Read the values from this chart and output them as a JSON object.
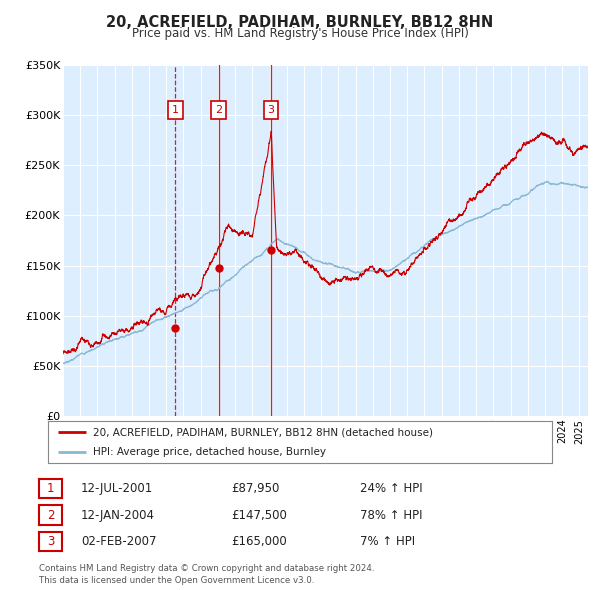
{
  "title": "20, ACREFIELD, PADIHAM, BURNLEY, BB12 8HN",
  "subtitle": "Price paid vs. HM Land Registry's House Price Index (HPI)",
  "legend_property": "20, ACREFIELD, PADIHAM, BURNLEY, BB12 8HN (detached house)",
  "legend_hpi": "HPI: Average price, detached house, Burnley",
  "property_color": "#cc0000",
  "hpi_color": "#89b8d4",
  "background_color": "#ddeeff",
  "table_rows": [
    [
      "1",
      "12-JUL-2001",
      "£87,950",
      "24% ↑ HPI"
    ],
    [
      "2",
      "12-JAN-2004",
      "£147,500",
      "78% ↑ HPI"
    ],
    [
      "3",
      "02-FEB-2007",
      "£165,000",
      "7% ↑ HPI"
    ]
  ],
  "footnote": "Contains HM Land Registry data © Crown copyright and database right 2024.\nThis data is licensed under the Open Government Licence v3.0.",
  "ylim": [
    0,
    350000
  ],
  "yticks": [
    0,
    50000,
    100000,
    150000,
    200000,
    250000,
    300000,
    350000
  ],
  "ytick_labels": [
    "£0",
    "£50K",
    "£100K",
    "£150K",
    "£200K",
    "£250K",
    "£300K",
    "£350K"
  ],
  "xstart": 1995.0,
  "xend": 2025.5,
  "trans_years": [
    2001.53,
    2004.04,
    2007.09
  ],
  "trans_prices": [
    87950,
    147500,
    165000
  ],
  "vline1_style": "dashed",
  "vline23_style": "solid"
}
